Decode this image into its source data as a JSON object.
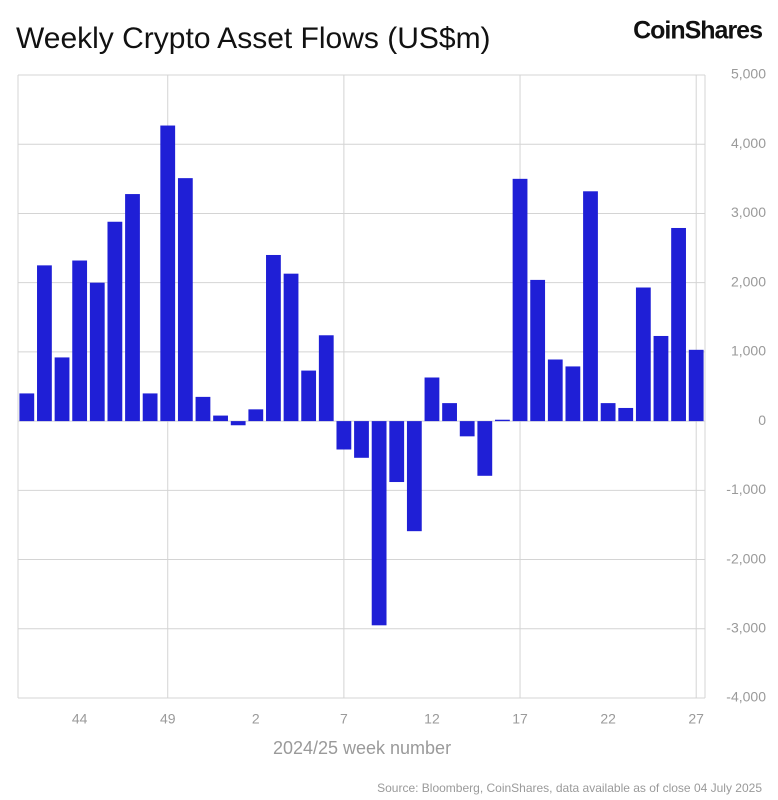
{
  "chart_data": {
    "type": "bar",
    "title": "Weekly Crypto Asset Flows (US$m)",
    "brand": "CoinShares",
    "x_label": "2024/25 week number",
    "source": "Source: Bloomberg, CoinShares, data available as of close 04 July 2025",
    "categories": [
      null,
      null,
      null,
      "44",
      null,
      null,
      null,
      null,
      "49",
      null,
      null,
      null,
      null,
      "2",
      null,
      null,
      null,
      null,
      "7",
      null,
      null,
      null,
      null,
      "12",
      null,
      null,
      null,
      null,
      "17",
      null,
      null,
      null,
      null,
      "22",
      null,
      null,
      null,
      null,
      "27"
    ],
    "values": [
      400,
      2250,
      920,
      2320,
      2000,
      2880,
      3280,
      400,
      4270,
      3510,
      350,
      80,
      -60,
      170,
      2400,
      2130,
      730,
      1240,
      -410,
      -530,
      -2950,
      -880,
      -1590,
      630,
      260,
      -220,
      -790,
      20,
      3500,
      2040,
      890,
      790,
      3320,
      260,
      190,
      1930,
      1230,
      2790,
      1030
    ],
    "color": "#1f1fd6",
    "ylim": [
      -4000,
      5000
    ],
    "yticks": [
      {
        "value": -4000,
        "label": "-4,000"
      },
      {
        "value": -3000,
        "label": "-3,000"
      },
      {
        "value": -2000,
        "label": "-2,000"
      },
      {
        "value": -1000,
        "label": "-1,000"
      },
      0,
      {
        "value": 1000,
        "label": "1,000"
      },
      {
        "value": 2000,
        "label": "2,000"
      },
      {
        "value": 3000,
        "label": "3,000"
      },
      {
        "value": 4000,
        "label": "4,000"
      },
      {
        "value": 5000,
        "label": "5,000"
      }
    ],
    "grid": true
  }
}
